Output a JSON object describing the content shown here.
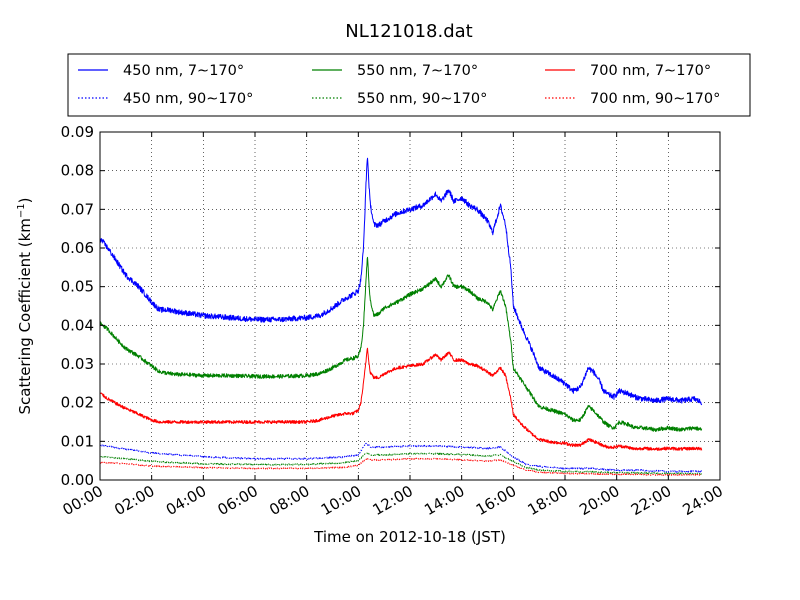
{
  "chart_data": {
    "type": "line",
    "title": "NL121018.dat",
    "xlabel": "Time on 2012-10-18 (JST)",
    "ylabel": "Scattering Coefficient (km",
    "ylabel_sup": "−1",
    "ylabel_close": ")",
    "xlim": [
      0,
      24
    ],
    "ylim": [
      0,
      0.09
    ],
    "x_ticks": [
      "00:00",
      "02:00",
      "04:00",
      "06:00",
      "08:00",
      "10:00",
      "12:00",
      "14:00",
      "16:00",
      "18:00",
      "20:00",
      "22:00",
      "24:00"
    ],
    "y_ticks": [
      "0.00",
      "0.01",
      "0.02",
      "0.03",
      "0.04",
      "0.05",
      "0.06",
      "0.07",
      "0.08",
      "0.09"
    ],
    "grid": true,
    "legend_position": "top",
    "x_unit": "hours",
    "series": [
      {
        "name": "450 nm, 7∼170°",
        "color": "#0000ff",
        "style": "solid",
        "noise": 0.0007,
        "x": [
          0,
          0.3,
          0.7,
          1.0,
          1.5,
          2.0,
          2.3,
          2.7,
          3.0,
          3.5,
          4.0,
          5.0,
          6.0,
          7.0,
          8.0,
          8.5,
          9.0,
          9.5,
          9.8,
          10.0,
          10.1,
          10.2,
          10.3,
          10.35,
          10.45,
          10.6,
          10.8,
          11.0,
          11.5,
          12.0,
          12.5,
          13.0,
          13.2,
          13.5,
          13.7,
          14.0,
          14.3,
          14.6,
          15.0,
          15.2,
          15.5,
          15.7,
          15.9,
          16.0,
          16.3,
          16.7,
          17.0,
          17.5,
          18.0,
          18.3,
          18.6,
          18.9,
          19.1,
          19.3,
          19.5,
          19.7,
          19.9,
          20.1,
          20.4,
          20.7,
          21.0,
          21.5,
          22.0,
          22.5,
          23.0,
          23.3
        ],
        "y": [
          0.0625,
          0.06,
          0.056,
          0.053,
          0.05,
          0.046,
          0.044,
          0.044,
          0.0435,
          0.043,
          0.0425,
          0.042,
          0.0415,
          0.0415,
          0.042,
          0.0425,
          0.0445,
          0.047,
          0.048,
          0.049,
          0.052,
          0.06,
          0.077,
          0.084,
          0.072,
          0.066,
          0.066,
          0.067,
          0.069,
          0.07,
          0.071,
          0.074,
          0.072,
          0.075,
          0.072,
          0.073,
          0.071,
          0.07,
          0.067,
          0.064,
          0.071,
          0.066,
          0.055,
          0.045,
          0.04,
          0.034,
          0.029,
          0.027,
          0.025,
          0.023,
          0.024,
          0.029,
          0.028,
          0.026,
          0.023,
          0.022,
          0.0215,
          0.023,
          0.0225,
          0.0215,
          0.021,
          0.0205,
          0.021,
          0.0205,
          0.021,
          0.02
        ]
      },
      {
        "name": "550 nm, 7∼170°",
        "color": "#008000",
        "style": "solid",
        "noise": 0.0005,
        "x": [
          0,
          0.3,
          0.7,
          1.0,
          1.5,
          2.0,
          2.3,
          2.7,
          3.0,
          3.5,
          4.0,
          5.0,
          6.0,
          7.0,
          8.0,
          8.5,
          9.0,
          9.5,
          9.8,
          10.0,
          10.1,
          10.2,
          10.3,
          10.35,
          10.45,
          10.6,
          10.8,
          11.0,
          11.5,
          12.0,
          12.5,
          13.0,
          13.2,
          13.5,
          13.7,
          14.0,
          14.3,
          14.6,
          15.0,
          15.2,
          15.5,
          15.7,
          15.9,
          16.0,
          16.3,
          16.7,
          17.0,
          17.5,
          18.0,
          18.3,
          18.6,
          18.9,
          19.1,
          19.3,
          19.5,
          19.7,
          19.9,
          20.1,
          20.4,
          20.7,
          21.0,
          21.5,
          22.0,
          22.5,
          23.0,
          23.3
        ],
        "y": [
          0.0405,
          0.039,
          0.036,
          0.034,
          0.032,
          0.0295,
          0.028,
          0.0275,
          0.0273,
          0.0272,
          0.027,
          0.027,
          0.0268,
          0.0268,
          0.027,
          0.0275,
          0.029,
          0.031,
          0.0315,
          0.032,
          0.034,
          0.04,
          0.052,
          0.058,
          0.047,
          0.0425,
          0.043,
          0.0445,
          0.046,
          0.048,
          0.0495,
          0.052,
          0.05,
          0.053,
          0.05,
          0.05,
          0.049,
          0.047,
          0.046,
          0.044,
          0.049,
          0.045,
          0.036,
          0.029,
          0.026,
          0.022,
          0.019,
          0.018,
          0.017,
          0.0155,
          0.0155,
          0.019,
          0.018,
          0.0165,
          0.015,
          0.014,
          0.0135,
          0.015,
          0.0145,
          0.0135,
          0.0135,
          0.013,
          0.0135,
          0.013,
          0.0135,
          0.013
        ]
      },
      {
        "name": "700 nm, 7∼170°",
        "color": "#ff0000",
        "style": "solid",
        "noise": 0.0004,
        "x": [
          0,
          0.3,
          0.7,
          1.0,
          1.5,
          2.0,
          2.3,
          2.7,
          3.0,
          3.5,
          4.0,
          5.0,
          6.0,
          7.0,
          8.0,
          8.5,
          9.0,
          9.5,
          9.8,
          10.0,
          10.1,
          10.2,
          10.3,
          10.35,
          10.45,
          10.6,
          10.8,
          11.0,
          11.5,
          12.0,
          12.5,
          13.0,
          13.2,
          13.5,
          13.7,
          14.0,
          14.3,
          14.6,
          15.0,
          15.2,
          15.5,
          15.7,
          15.9,
          16.0,
          16.3,
          16.7,
          17.0,
          17.5,
          18.0,
          18.3,
          18.6,
          18.9,
          19.1,
          19.3,
          19.5,
          19.7,
          19.9,
          20.1,
          20.4,
          20.7,
          21.0,
          21.5,
          22.0,
          22.5,
          23.0,
          23.3
        ],
        "y": [
          0.0225,
          0.021,
          0.0195,
          0.0185,
          0.017,
          0.0155,
          0.015,
          0.015,
          0.015,
          0.015,
          0.015,
          0.015,
          0.015,
          0.015,
          0.015,
          0.0155,
          0.0165,
          0.0172,
          0.0172,
          0.018,
          0.02,
          0.025,
          0.031,
          0.0345,
          0.028,
          0.0265,
          0.0265,
          0.0275,
          0.029,
          0.0295,
          0.03,
          0.0325,
          0.031,
          0.033,
          0.031,
          0.031,
          0.03,
          0.0295,
          0.028,
          0.027,
          0.029,
          0.027,
          0.021,
          0.017,
          0.0145,
          0.012,
          0.0105,
          0.0098,
          0.0095,
          0.009,
          0.009,
          0.0105,
          0.01,
          0.0095,
          0.0088,
          0.0085,
          0.0085,
          0.0088,
          0.0085,
          0.008,
          0.0082,
          0.008,
          0.0082,
          0.008,
          0.0082,
          0.008
        ]
      },
      {
        "name": "450 nm, 90∼170°",
        "color": "#0000ff",
        "style": "dotted",
        "noise": 0.0002,
        "x": [
          0,
          1,
          2,
          3,
          4,
          6,
          8,
          9.5,
          10.0,
          10.3,
          10.5,
          11,
          12,
          13,
          14,
          15,
          15.5,
          16,
          16.5,
          17,
          18,
          19,
          20,
          21,
          22,
          23,
          23.3
        ],
        "y": [
          0.009,
          0.008,
          0.007,
          0.0065,
          0.006,
          0.0055,
          0.0055,
          0.006,
          0.0065,
          0.0095,
          0.0085,
          0.0085,
          0.0088,
          0.0088,
          0.0085,
          0.0082,
          0.0085,
          0.006,
          0.004,
          0.0035,
          0.003,
          0.003,
          0.0025,
          0.0025,
          0.0022,
          0.0022,
          0.0022
        ]
      },
      {
        "name": "550 nm, 90∼170°",
        "color": "#008000",
        "style": "dotted",
        "noise": 0.00018,
        "x": [
          0,
          1,
          2,
          3,
          4,
          6,
          8,
          9.5,
          10.0,
          10.3,
          10.5,
          11,
          12,
          13,
          14,
          15,
          15.5,
          16,
          16.5,
          17,
          18,
          19,
          20,
          21,
          22,
          23,
          23.3
        ],
        "y": [
          0.006,
          0.0055,
          0.0048,
          0.0045,
          0.0042,
          0.004,
          0.004,
          0.0045,
          0.005,
          0.007,
          0.0065,
          0.0065,
          0.0068,
          0.0068,
          0.0066,
          0.0062,
          0.0065,
          0.0048,
          0.0032,
          0.0026,
          0.0022,
          0.0021,
          0.0019,
          0.0018,
          0.0017,
          0.0017,
          0.0017
        ]
      },
      {
        "name": "700 nm, 90∼170°",
        "color": "#ff0000",
        "style": "dotted",
        "noise": 0.00015,
        "x": [
          0,
          1,
          2,
          3,
          4,
          6,
          8,
          9.5,
          10.0,
          10.3,
          10.5,
          11,
          12,
          13,
          14,
          15,
          15.5,
          16,
          16.5,
          17,
          18,
          19,
          20,
          21,
          22,
          23,
          23.3
        ],
        "y": [
          0.0045,
          0.0042,
          0.0036,
          0.0034,
          0.0032,
          0.003,
          0.003,
          0.0033,
          0.0038,
          0.0055,
          0.0052,
          0.0052,
          0.0055,
          0.0055,
          0.0052,
          0.0049,
          0.0052,
          0.0038,
          0.0025,
          0.002,
          0.0017,
          0.0016,
          0.0015,
          0.0014,
          0.0013,
          0.0013,
          0.0013
        ]
      }
    ]
  }
}
